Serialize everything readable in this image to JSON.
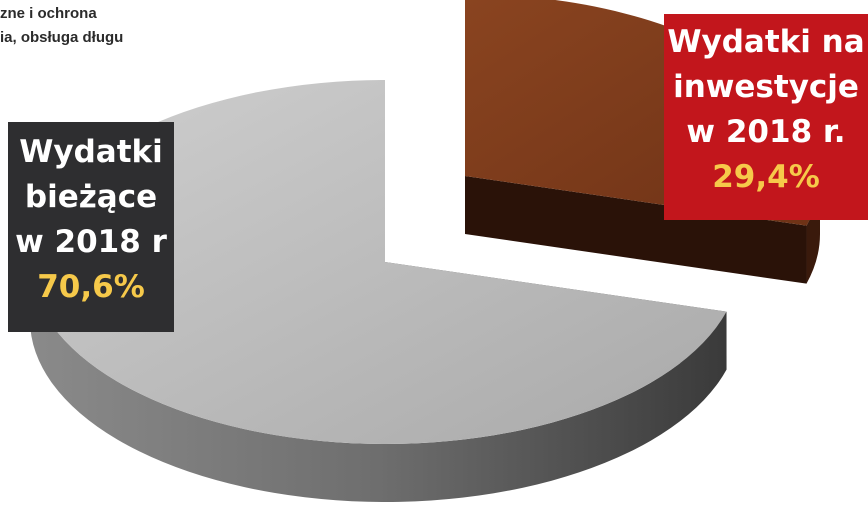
{
  "corner_text": {
    "line1": "zne i ochrona",
    "line2": "ia, obsługa długu"
  },
  "colors": {
    "current_top": "#b9b9b9",
    "current_side": "#6b6b6b",
    "invest_top": "#7a3a1a",
    "invest_side": "#3a1a0c",
    "current_label_bg": "#2e2e30",
    "invest_label_bg": "#c2161c",
    "percent_text": "#f6c94a"
  },
  "chart_data": {
    "type": "pie",
    "style": "3d-exploded",
    "categories": [
      "Wydatki bieżące w 2018 r",
      "Wydatki na inwestycje w 2018 r."
    ],
    "values": [
      70.6,
      29.4
    ],
    "unit": "%",
    "labels": {
      "current": {
        "line1": "Wydatki",
        "line2": "bieżące",
        "line3": "w 2018 r",
        "percent": "70,6%"
      },
      "invest": {
        "line1": "Wydatki na",
        "line2": "inwestycje",
        "line3": "w 2018 r.",
        "percent": "29,4%"
      }
    }
  }
}
